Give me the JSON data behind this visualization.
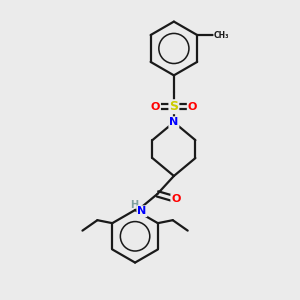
{
  "background_color": "#ebebeb",
  "bond_color": "#1a1a1a",
  "bond_width": 1.6,
  "atom_colors": {
    "N": "#0000ff",
    "O": "#ff0000",
    "S": "#cccc00",
    "C": "#1a1a1a",
    "H": "#7f9f9f"
  },
  "figsize": [
    3.0,
    3.0
  ],
  "dpi": 100,
  "xlim": [
    0,
    10
  ],
  "ylim": [
    0,
    10
  ]
}
